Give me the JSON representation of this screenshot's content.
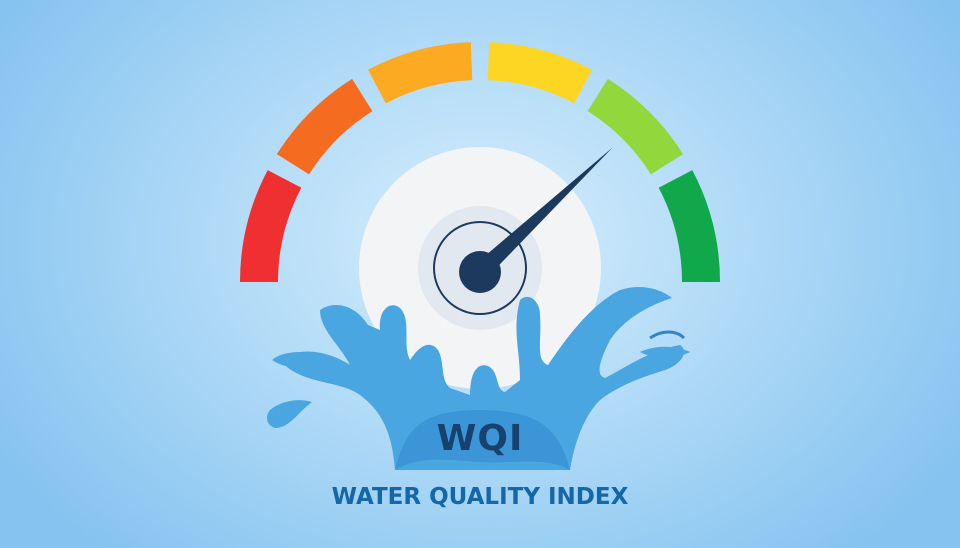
{
  "gauge": {
    "value_fraction": 0.76,
    "segment_colors": [
      "#f03030",
      "#f56b1f",
      "#fbaa22",
      "#fcd623",
      "#92d83d",
      "#10a84a"
    ],
    "needle_color": "#1c3a5e",
    "dial_color": "#f3f4f6"
  },
  "splash": {
    "color": "#4aa6e0",
    "dark_color": "#2f86c8"
  },
  "badge": {
    "abbr": "WQI"
  },
  "title": "WATER QUALITY INDEX"
}
